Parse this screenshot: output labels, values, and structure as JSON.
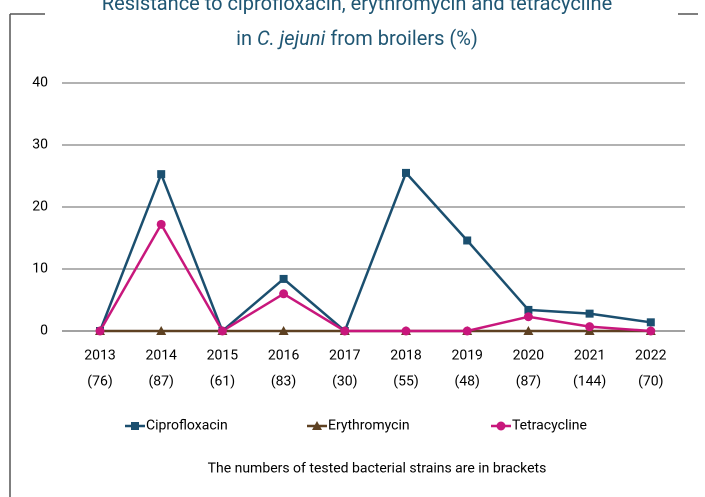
{
  "chart_data": {
    "type": "line",
    "title": [
      [
        "Resistance to ciprofloxacin, erythromycin and tetracycline"
      ],
      [
        "in ",
        "C. jejuni",
        " from broilers (%)"
      ]
    ],
    "title_italic_segment": [
      1,
      1
    ],
    "categories": [
      "2013",
      "2014",
      "2015",
      "2016",
      "2017",
      "2018",
      "2019",
      "2020",
      "2021",
      "2022"
    ],
    "sample_sizes": [
      "(76)",
      "(87)",
      "(61)",
      "(83)",
      "(30)",
      "(55)",
      "(48)",
      "(87)",
      "(144)",
      "(70)"
    ],
    "series": [
      {
        "name": "Ciprofloxacin",
        "color": "#1b4f6f",
        "marker": "square",
        "values": [
          0,
          25.3,
          0,
          8.4,
          0,
          25.5,
          14.6,
          3.4,
          2.8,
          1.4
        ]
      },
      {
        "name": "Erythromycin",
        "color": "#5e4122",
        "marker": "triangle",
        "values": [
          0,
          0,
          0,
          0,
          0,
          0,
          0,
          0,
          0,
          0
        ]
      },
      {
        "name": "Tetracycline",
        "color": "#c8177c",
        "marker": "circle",
        "values": [
          0,
          17.2,
          0,
          6.0,
          0,
          0,
          0,
          2.3,
          0.7,
          0
        ]
      }
    ],
    "ylim": [
      0,
      40
    ],
    "yticks": [
      0,
      10,
      20,
      30,
      40
    ],
    "grid": true,
    "legend": "bottom",
    "footnote": "The numbers of tested bacterial strains are in brackets"
  }
}
